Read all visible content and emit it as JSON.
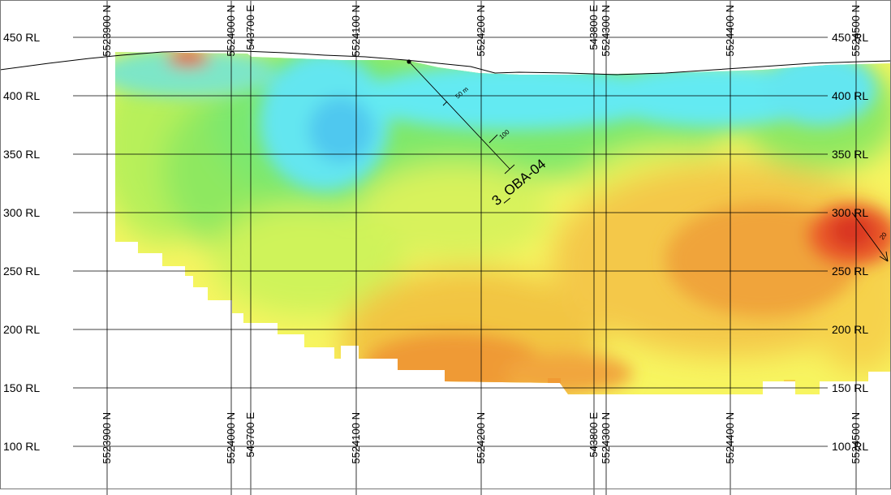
{
  "view": {
    "type": "geological cross-section",
    "rl_labels": [
      "450 RL",
      "400 RL",
      "350 RL",
      "300 RL",
      "250 RL",
      "200 RL",
      "150 RL",
      "100 RL"
    ],
    "northing_lines": [
      {
        "top": "5523900 N",
        "bottom": "5523900 N"
      },
      {
        "top": "5524000 N",
        "bottom": "5524000 N"
      },
      {
        "top": "5524100 N",
        "bottom": "5524100 N"
      },
      {
        "top": "5524200 N",
        "bottom": "5524200 N"
      },
      {
        "top": "5524300 N",
        "bottom": "5524300 N"
      },
      {
        "top": "5524400 N",
        "bottom": "5524400 N"
      },
      {
        "top": "5524500 N",
        "bottom": "5524500 N"
      }
    ],
    "easting_lines": [
      {
        "top": "543700 E",
        "bottom": "543700 E"
      },
      {
        "top": "543800 E",
        "bottom": "543800 E"
      }
    ]
  },
  "drillholes": [
    {
      "id": "3_OBA-04",
      "ticks": [
        "50 m",
        "100"
      ]
    },
    {
      "id": "unlabeled-east-hole",
      "ticks": [
        "20"
      ]
    }
  ],
  "colors": {
    "low": "#63eaf0",
    "mid_low": "#7fe86a",
    "mid": "#b8f05a",
    "mid_high": "#ffff5a",
    "high": "#f2a33c",
    "very_high": "#e83a26",
    "grid": "#000000",
    "frame": "#777777"
  }
}
